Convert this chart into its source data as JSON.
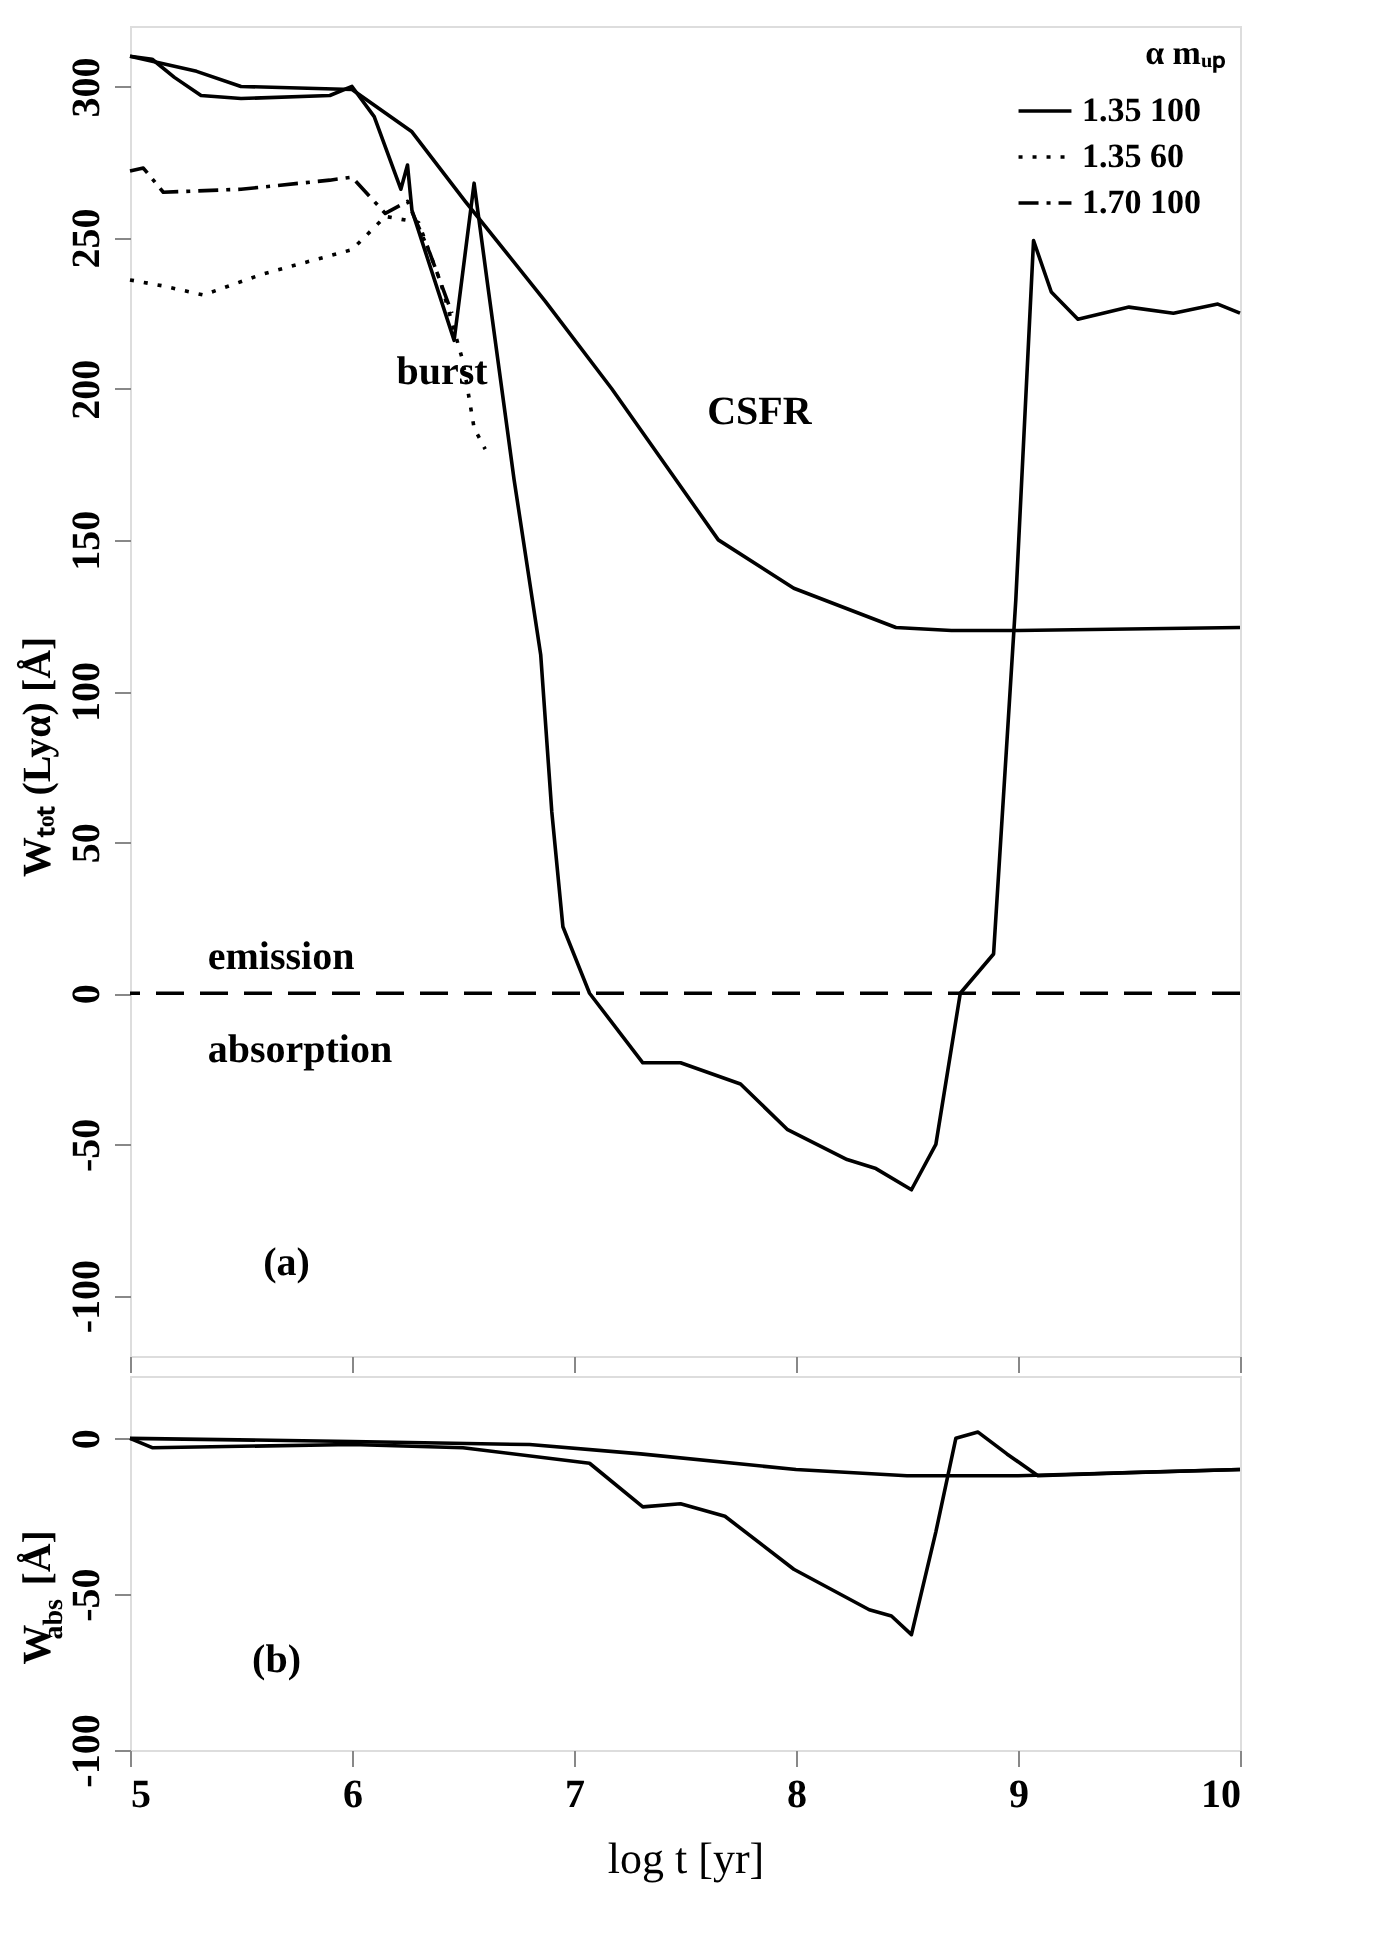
{
  "chart_data": [
    {
      "type": "line",
      "ylabel": "Wₜₒₜ (Lyα)  [Å]",
      "legend_title": "α    mᵤₚ",
      "legend": "top right",
      "grid": false,
      "tick_labels": "y",
      "xlim": [
        5,
        10
      ],
      "xticks": [
        5,
        6,
        7,
        8,
        9,
        10
      ],
      "ylim": [
        -120,
        320
      ],
      "yticks": [
        -100,
        -50,
        0,
        50,
        100,
        150,
        200,
        250,
        300
      ],
      "series": [
        {
          "name": "1.35    100",
          "color": "#000000",
          "line_style": "solid",
          "x": [
            5.0,
            5.1,
            5.2,
            5.32,
            5.5,
            5.9,
            6.0,
            6.1,
            6.22,
            6.25,
            6.27,
            6.46,
            6.55,
            6.61,
            6.73,
            6.85,
            6.9,
            6.95,
            7.07,
            7.31,
            7.48,
            7.75,
            7.96,
            8.23,
            8.36,
            8.52,
            8.63,
            8.74,
            8.89,
            8.99,
            9.07,
            9.15,
            9.27,
            9.5,
            9.7,
            9.9,
            10.0
          ],
          "values": [
            310,
            309,
            303,
            297,
            296,
            297,
            300,
            290,
            266,
            274,
            259,
            216,
            268,
            235,
            170,
            112,
            60,
            22,
            0,
            -23,
            -23,
            -30,
            -45,
            -55,
            -58,
            -65,
            -50,
            0,
            13,
            130,
            249,
            232,
            223,
            227,
            225,
            228,
            225
          ]
        },
        {
          "color": "#000000",
          "line_style": "solid",
          "x": [
            5.0,
            5.3,
            5.5,
            6.0,
            6.27,
            6.51,
            6.87,
            7.17,
            7.65,
            7.99,
            8.45,
            8.7,
            9.0,
            10.0
          ],
          "values": [
            310,
            305,
            300,
            299,
            285,
            262,
            229,
            200,
            150,
            134,
            121,
            120,
            120,
            121
          ]
        },
        {
          "name": "1.35    60",
          "color": "#000000",
          "line_style": "dotted",
          "x": [
            5.0,
            5.15,
            5.33,
            5.6,
            6.0,
            6.15,
            6.3,
            6.4,
            6.5,
            6.55,
            6.6
          ],
          "values": [
            236,
            234,
            231,
            238,
            246,
            257,
            255,
            235,
            209,
            187,
            180
          ]
        },
        {
          "name": "1.70    100",
          "color": "#000000",
          "line_style": "dashdot",
          "x": [
            5.0,
            5.06,
            5.15,
            5.5,
            5.9,
            6.0,
            6.15,
            6.25,
            6.35,
            6.45
          ],
          "values": [
            272,
            273,
            265,
            266,
            269,
            270,
            258,
            262,
            245,
            225
          ]
        }
      ],
      "ref_lines": [
        {
          "axis": "y",
          "value": 0,
          "line_style": "dashed",
          "color": "#000000"
        }
      ],
      "annotations": [
        "burst",
        "CSFR",
        "emission",
        "absorption",
        "(a)"
      ]
    },
    {
      "type": "line",
      "xlabel": "log t  [yr]",
      "ylabel": "W$_{abs}$  [Å]",
      "grid": false,
      "xlim": [
        5,
        10
      ],
      "xticks": [
        5,
        6,
        7,
        8,
        9,
        10
      ],
      "ylim": [
        -100,
        20
      ],
      "yticks": [
        -100,
        -50,
        0
      ],
      "series": [
        {
          "color": "#000000",
          "line_style": "solid",
          "x": [
            5.0,
            5.1,
            6.0,
            6.5,
            7.07,
            7.31,
            7.48,
            7.68,
            7.99,
            8.33,
            8.43,
            8.52,
            8.63,
            8.72,
            8.82,
            8.95,
            9.09,
            9.5,
            10.0
          ],
          "values": [
            0,
            -3,
            -2,
            -3,
            -8,
            -22,
            -21,
            -25,
            -42,
            -55,
            -57,
            -63,
            -30,
            0,
            2,
            -5,
            -12,
            -11,
            -10
          ]
        },
        {
          "color": "#000000",
          "line_style": "solid",
          "x": [
            5.0,
            6.0,
            6.8,
            7.3,
            8.0,
            8.5,
            9.0,
            10.0
          ],
          "values": [
            0,
            -1,
            -2,
            -5,
            -10,
            -12,
            -12,
            -10
          ]
        }
      ],
      "annotations": [
        "(b)"
      ]
    }
  ]
}
